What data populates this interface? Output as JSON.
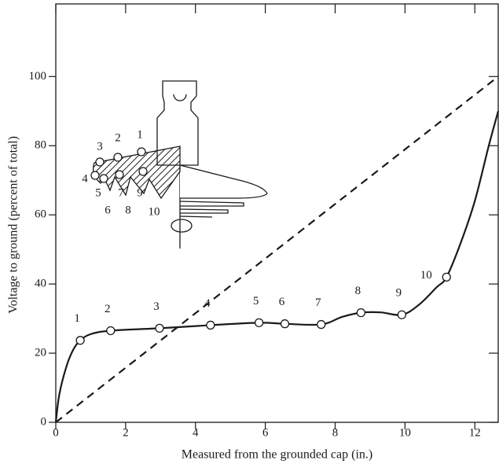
{
  "chart_data": {
    "type": "line",
    "x_label": "Measured from the grounded cap (in.)",
    "y_label": "Voltage to ground (percent of total)",
    "xlim": [
      0,
      12.67
    ],
    "ylim": [
      0,
      121
    ],
    "xticks": [
      0,
      2,
      4,
      6,
      8,
      10,
      12
    ],
    "yticks": [
      0,
      20,
      40,
      60,
      80,
      100
    ],
    "color": "#1a1a1a",
    "curve": {
      "x": [
        0,
        0.1,
        0.3,
        0.5,
        0.7,
        1.0,
        1.57,
        2.97,
        4.43,
        5.82,
        6.56,
        7.6,
        8.2,
        8.74,
        9.3,
        9.91,
        10.4,
        10.9,
        11.19,
        11.6,
        12.0,
        12.4,
        12.67
      ],
      "values": [
        0,
        8,
        16,
        21,
        23.7,
        25.5,
        26.5,
        27.2,
        28.1,
        28.8,
        28.5,
        28.3,
        30.5,
        31.7,
        31.8,
        31.1,
        34,
        39,
        42,
        52,
        64,
        80,
        90
      ]
    },
    "points": {
      "labels": [
        "1",
        "2",
        "3",
        "4",
        "5",
        "6",
        "7",
        "8",
        "9",
        "10"
      ],
      "x": [
        0.7,
        1.57,
        2.97,
        4.43,
        5.82,
        6.56,
        7.6,
        8.74,
        9.91,
        11.19
      ],
      "values": [
        23.7,
        26.5,
        27.2,
        28.1,
        28.8,
        28.5,
        28.3,
        31.7,
        31.1,
        42.0
      ]
    },
    "uniform": {
      "x": [
        0,
        12.67
      ],
      "values": [
        0,
        100
      ]
    }
  }
}
